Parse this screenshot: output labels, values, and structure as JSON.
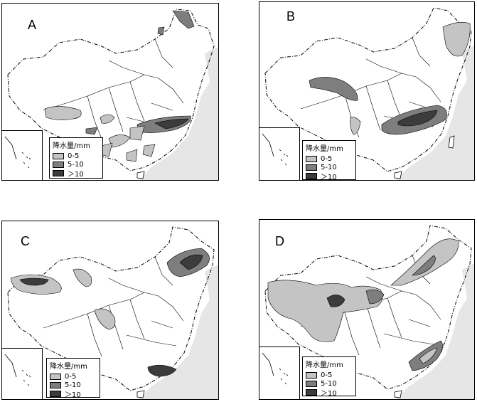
{
  "colors": {
    "light": "#c4c4c4",
    "medium": "#7e7e7e",
    "dark": "#3c3c3c",
    "sea": "#e6e6e6"
  },
  "legend": {
    "title": "降水量/mm",
    "items": [
      {
        "label": "0-5",
        "level": "light"
      },
      {
        "label": "5-10",
        "level": "medium"
      },
      {
        "label": "＞10",
        "level": "dark"
      }
    ]
  },
  "panels": [
    {
      "id": "A",
      "label": "A"
    },
    {
      "id": "B",
      "label": "B"
    },
    {
      "id": "C",
      "label": "C"
    },
    {
      "id": "D",
      "label": "D"
    }
  ]
}
